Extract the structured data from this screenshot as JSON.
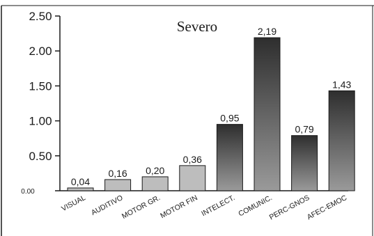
{
  "chart_data": {
    "type": "bar",
    "title": "Severo",
    "xlabel": "",
    "ylabel": "",
    "categories": [
      "VISUAL",
      "AUDITIVO",
      "MOTOR GR.",
      "MOTOR FIN",
      "INTELECT.",
      "COMUNIC.",
      "PERC-GNOS",
      "AFEC-EMOC"
    ],
    "values": [
      0.04,
      0.16,
      0.2,
      0.36,
      0.95,
      2.19,
      0.79,
      1.43
    ],
    "value_labels": [
      "0,04",
      "0,16",
      "0,20",
      "0,36",
      "0,95",
      "2,19",
      "0,79",
      "1,43"
    ],
    "ylim": [
      0,
      2.5
    ],
    "yticks": [
      0,
      0.5,
      1.0,
      1.5,
      2.0,
      2.5
    ],
    "ytick_labels": [
      "0.00",
      "0.50",
      "1.00",
      "1.50",
      "2.00",
      "2.50"
    ],
    "grid": false,
    "legend": "none",
    "colors": {
      "bar_light": "#cfcfcf",
      "bar_dark": "#3a3a3a",
      "axis": "#1a1a1a"
    }
  }
}
